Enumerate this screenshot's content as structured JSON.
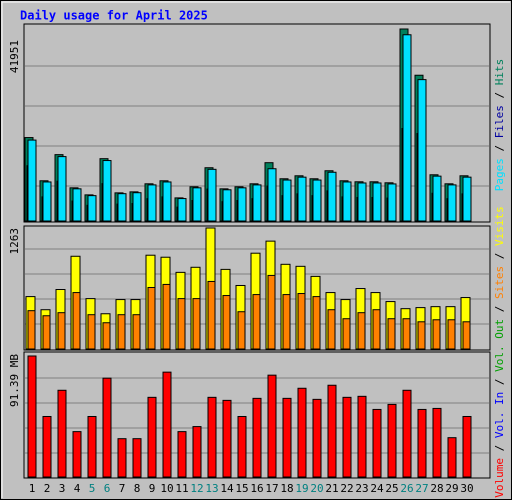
{
  "chart_data": [
    {
      "type": "bar",
      "title": "Daily usage for April 2025",
      "categories": [
        "1",
        "2",
        "3",
        "4",
        "5",
        "6",
        "7",
        "8",
        "9",
        "10",
        "11",
        "12",
        "13",
        "14",
        "15",
        "16",
        "17",
        "18",
        "19",
        "20",
        "21",
        "22",
        "23",
        "24",
        "25",
        "26",
        "27",
        "28",
        "29",
        "30"
      ],
      "category_colors": [
        "#000000",
        "#000000",
        "#000000",
        "#000000",
        "#008080",
        "#008080",
        "#000000",
        "#000000",
        "#000000",
        "#000000",
        "#000000",
        "#008080",
        "#008080",
        "#000000",
        "#000000",
        "#000000",
        "#000000",
        "#000000",
        "#008080",
        "#008080",
        "#000000",
        "#000000",
        "#000000",
        "#000000",
        "#000000",
        "#008080",
        "#008080",
        "#000000",
        "#000000",
        "#000000"
      ],
      "legend_separator": " / ",
      "ylim": [
        0,
        41951
      ],
      "yticks": [
        41951
      ],
      "series": [
        {
          "name": "Hits",
          "color": "#00805c",
          "values": [
            18230,
            8790,
            14500,
            7250,
            5710,
            13620,
            6150,
            6370,
            8130,
            8790,
            5050,
            7470,
            11640,
            7030,
            7470,
            8130,
            12740,
            9230,
            9880,
            9230,
            10980,
            8790,
            8570,
            8570,
            8350,
            41951,
            31850,
            10100,
            8130,
            9880
          ]
        },
        {
          "name": "Files",
          "color": "#0000a0",
          "values": [
            12080,
            5270,
            8700,
            4350,
            3430,
            8170,
            3690,
            3820,
            4880,
            5270,
            3030,
            4480,
            6980,
            4220,
            4480,
            4880,
            7640,
            5540,
            5930,
            5540,
            6590,
            5270,
            5140,
            5140,
            5010,
            20210,
            19110,
            6060,
            4880,
            5930
          ]
        },
        {
          "name": "Pages",
          "color": "#00e0ff",
          "values": [
            17680,
            8530,
            14070,
            7030,
            5540,
            13210,
            5970,
            6180,
            7890,
            8530,
            4900,
            7250,
            11290,
            6820,
            7250,
            7890,
            11420,
            8950,
            9580,
            8950,
            10650,
            8530,
            8310,
            8310,
            8100,
            40690,
            30890,
            9800,
            7890,
            9580
          ]
        }
      ]
    },
    {
      "type": "bar",
      "ylim": [
        0,
        1263
      ],
      "yticks": [
        1263
      ],
      "series": [
        {
          "name": "Visits",
          "color": "#ffff00",
          "values": [
            547,
            410,
            621,
            968,
            526,
            368,
            516,
            516,
            979,
            958,
            800,
            853,
            1263,
            831,
            663,
            1000,
            1126,
            884,
            863,
            758,
            589,
            516,
            631,
            589,
            495,
            421,
            432,
            442,
            442,
            537
          ]
        },
        {
          "name": "Sites",
          "color": "#ff8000",
          "values": [
            400,
            347,
            379,
            589,
            358,
            274,
            358,
            358,
            642,
            674,
            526,
            526,
            705,
            558,
            389,
            568,
            768,
            568,
            579,
            547,
            410,
            316,
            379,
            410,
            316,
            316,
            284,
            305,
            305,
            284
          ]
        }
      ]
    },
    {
      "type": "bar",
      "ylim": [
        0,
        91.39
      ],
      "yticks": [
        {
          "value": 91.39,
          "label": "91.39 MB"
        }
      ],
      "series": [
        {
          "name": "Volume",
          "color": "#ff0000",
          "values": [
            91.39,
            45.7,
            65.5,
            34.27,
            45.7,
            74.64,
            28.94,
            28.94,
            60.17,
            79.2,
            34.27,
            38.08,
            60.17,
            57.88,
            45.7,
            59.4,
            76.92,
            59.4,
            67.02,
            58.64,
            69.3,
            60.17,
            60.93,
            51.03,
            54.83,
            65.5,
            51.03,
            51.79,
            29.7,
            45.7
          ]
        }
      ],
      "legend_extra": [
        {
          "name": "Vol. In",
          "color": "#0000ff"
        },
        {
          "name": "Vol. Out",
          "color": "#00a000"
        }
      ]
    }
  ]
}
